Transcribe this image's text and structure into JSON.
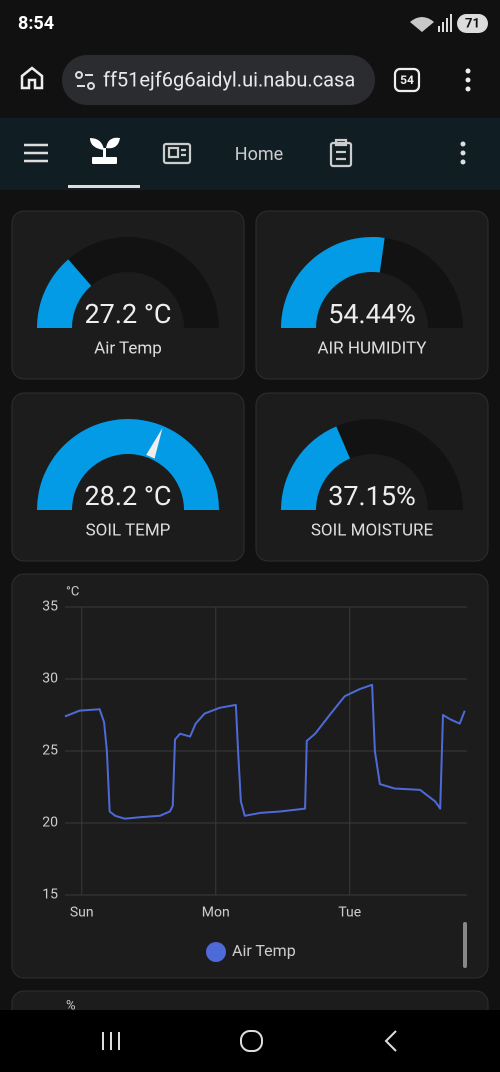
{
  "status_bar": {
    "time": "8:54",
    "battery": "71"
  },
  "browser": {
    "url": "ff51ejf6g6aidyl.ui.nabu.casa",
    "tabs": "54"
  },
  "nav": {
    "title": "Home"
  },
  "gauges": [
    {
      "name": "Air Temp",
      "value": 27.2,
      "value_label": "27.2 °C",
      "min": 0,
      "max": 100,
      "color": "#039be5"
    },
    {
      "name": "AIR HUMIDITY",
      "value": 54.44,
      "value_label": "54.44%",
      "min": 0,
      "max": 100,
      "color": "#039be5"
    },
    {
      "name": "SOIL TEMP",
      "value": 28.2,
      "value_label": "28.2 °C",
      "min": 0,
      "max": 45,
      "color": "#039be5",
      "needle": true
    },
    {
      "name": "SOIL MOISTURE",
      "value": 37.15,
      "value_label": "37.15%",
      "min": 0,
      "max": 100,
      "color": "#039be5"
    }
  ],
  "chart_data": {
    "type": "line",
    "y_label": "°C",
    "x": [
      -3,
      -0.4,
      3.2,
      4,
      4.5,
      5,
      6,
      7.7,
      10.4,
      14,
      15.8,
      16.3,
      16.7,
      17.6,
      19.4,
      20.4,
      22,
      24.7,
      27.6,
      28,
      28.5,
      29.2,
      32,
      35.5,
      40,
      40.3,
      41.8,
      44.4,
      47.1,
      49.8,
      52,
      52.5,
      53.4,
      56,
      60.6,
      63.3,
      64.2,
      64.7,
      66,
      67.7,
      68.6
    ],
    "series": [
      {
        "name": "Air Temp",
        "color": "#4e6ad6",
        "values": [
          27.4,
          27.8,
          27.9,
          27.0,
          25,
          20.8,
          20.5,
          20.3,
          20.4,
          20.5,
          20.8,
          21.2,
          25.8,
          26.2,
          26.0,
          26.9,
          27.6,
          28.0,
          28.2,
          25,
          21.5,
          20.5,
          20.7,
          20.8,
          21.0,
          25.7,
          26.2,
          27.5,
          28.8,
          29.3,
          29.6,
          25,
          22.7,
          22.4,
          22.3,
          21.5,
          21.0,
          27.5,
          27.2,
          26.9,
          27.8
        ]
      }
    ],
    "xlim": [
      -3,
      69
    ],
    "xticks": [
      {
        "value": 0,
        "label": "Sun"
      },
      {
        "value": 24,
        "label": "Mon"
      },
      {
        "value": 48,
        "label": "Tue"
      }
    ],
    "ylim": [
      15,
      35
    ],
    "yticks": [
      15,
      20,
      25,
      30,
      35
    ],
    "grid": true
  },
  "next_card": {
    "unit": "%"
  }
}
